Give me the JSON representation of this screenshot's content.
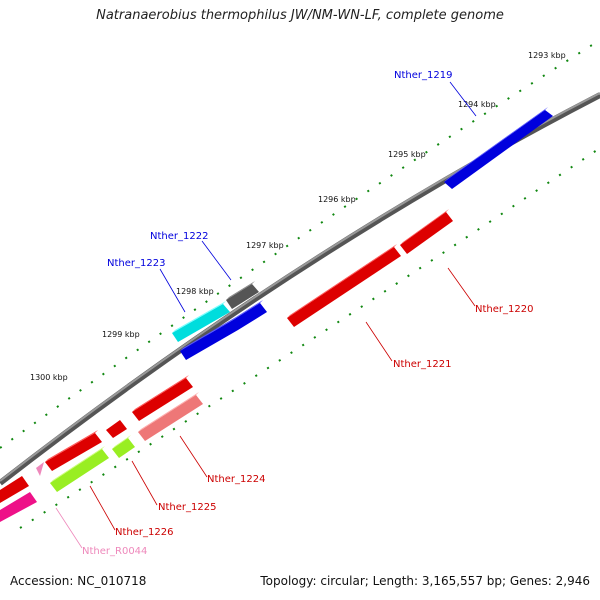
{
  "title": "Natranaerobius thermophilus JW/NM-WN-LF, complete genome",
  "accession": "Accession: NC_010718",
  "summary": "Topology: circular; Length: 3,165,557 bp; Genes: 2,946",
  "kbp_ticks": [
    "1293 kbp",
    "1294 kbp",
    "1295 kbp",
    "1296 kbp",
    "1297 kbp",
    "1298 kbp",
    "1299 kbp",
    "1300 kbp"
  ],
  "genes": [
    {
      "label": "Nther_1219",
      "color": "#0000dd"
    },
    {
      "label": "Nther_1220",
      "color": "#cc0000"
    },
    {
      "label": "Nther_1221",
      "color": "#cc0000"
    },
    {
      "label": "Nther_1222",
      "color": "#0000dd"
    },
    {
      "label": "Nther_1223",
      "color": "#0000dd"
    },
    {
      "label": "Nther_1224",
      "color": "#cc0000"
    },
    {
      "label": "Nther_1225",
      "color": "#cc0000"
    },
    {
      "label": "Nther_1226",
      "color": "#cc0000"
    },
    {
      "label": "Nther_R0044",
      "color": "#ee88bb"
    }
  ]
}
